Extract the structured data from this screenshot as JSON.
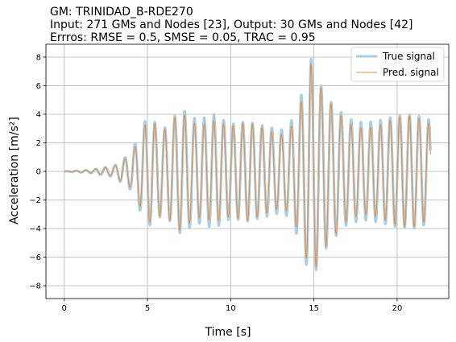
{
  "chart_data": {
    "type": "line",
    "title": [
      "GM: TRINIDAD_B-RDE270",
      "Input: 271 GMs and Nodes [23], Output: 30 GMs and Nodes [42]",
      "Errros: RMSE = 0.5, SMSE = 0.05, TRAC = 0.95"
    ],
    "xlabel": "Time [s]",
    "ylabel": "Acceleration [m/s²]",
    "xlim": [
      -1.1,
      23.1
    ],
    "ylim": [
      -8.9,
      8.9
    ],
    "xticks": [
      0,
      5,
      10,
      15,
      20
    ],
    "yticks": [
      -8,
      -6,
      -4,
      -2,
      0,
      2,
      4,
      6,
      8
    ],
    "xtick_labels": [
      "0",
      "5",
      "10",
      "15",
      "20"
    ],
    "ytick_labels": [
      "−8",
      "−6",
      "−4",
      "−2",
      "0",
      "2",
      "4",
      "6",
      "8"
    ],
    "grid": true,
    "legend_position": "upper right",
    "sampling": {
      "t_start": 0,
      "t_end": 22
    },
    "envelope": {
      "t": [
        0,
        1.5,
        3,
        4,
        4.5,
        5,
        5.5,
        6,
        7,
        8,
        9,
        10,
        11,
        12,
        13,
        13.5,
        14,
        14.5,
        14.8,
        15,
        15.5,
        16,
        17,
        18,
        19,
        20,
        21,
        22
      ],
      "amp": [
        0,
        0.1,
        0.4,
        1.3,
        2.6,
        3.9,
        3.4,
        3.0,
        4.4,
        3.6,
        4.0,
        3.3,
        3.5,
        3.2,
        2.9,
        3.2,
        4.5,
        6.3,
        8.0,
        7.3,
        5.8,
        4.9,
        3.7,
        3.4,
        3.6,
        3.9,
        4.0,
        3.6
      ]
    },
    "frequency_hz": 1.7,
    "series": [
      {
        "name": "True signal",
        "color": "#a6cde6",
        "style": "thick"
      },
      {
        "name": "Pred. signal",
        "color": "#ee8b38",
        "style": "thin"
      }
    ]
  }
}
